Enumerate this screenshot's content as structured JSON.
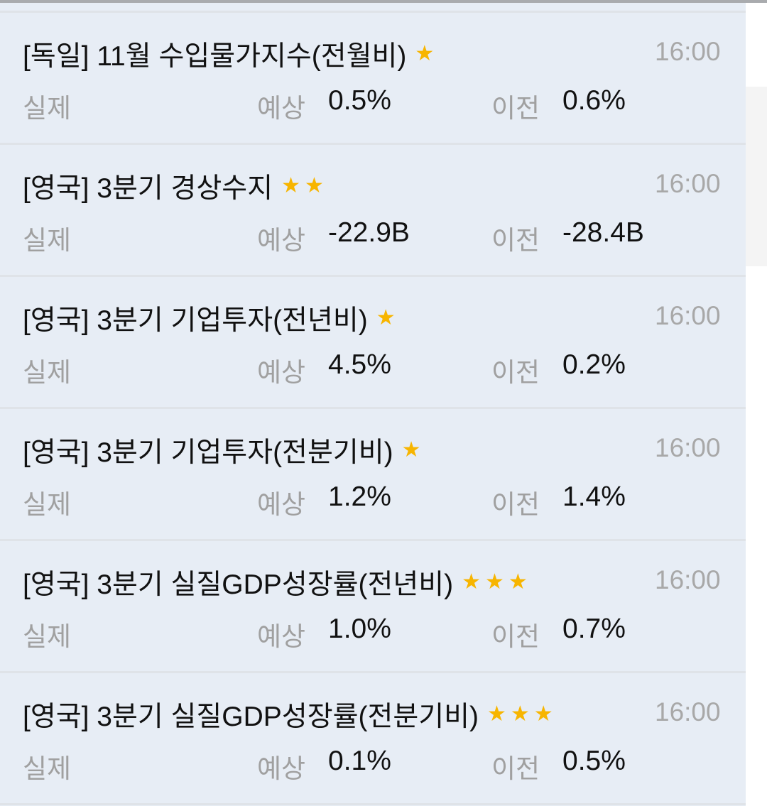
{
  "colors": {
    "background": "#e7edf5",
    "star": "#f7b500",
    "muted": "#a0a0a0",
    "text": "#111111"
  },
  "labels": {
    "actual": "실제",
    "forecast": "예상",
    "previous": "이전"
  },
  "events": [
    {
      "title": "[독일] 11월 수입물가지수(전월비)",
      "stars": 1,
      "time": "16:00",
      "actual": "",
      "forecast": "0.5%",
      "previous": "0.6%"
    },
    {
      "title": "[영국] 3분기 경상수지",
      "stars": 2,
      "time": "16:00",
      "actual": "",
      "forecast": "-22.9B",
      "previous": "-28.4B"
    },
    {
      "title": "[영국] 3분기 기업투자(전년비)",
      "stars": 1,
      "time": "16:00",
      "actual": "",
      "forecast": "4.5%",
      "previous": "0.2%"
    },
    {
      "title": "[영국] 3분기 기업투자(전분기비)",
      "stars": 1,
      "time": "16:00",
      "actual": "",
      "forecast": "1.2%",
      "previous": "1.4%"
    },
    {
      "title": "[영국] 3분기 실질GDP성장률(전년비)",
      "stars": 3,
      "time": "16:00",
      "actual": "",
      "forecast": "1.0%",
      "previous": "0.7%"
    },
    {
      "title": "[영국] 3분기 실질GDP성장률(전분기비)",
      "stars": 3,
      "time": "16:00",
      "actual": "",
      "forecast": "0.1%",
      "previous": "0.5%"
    }
  ]
}
